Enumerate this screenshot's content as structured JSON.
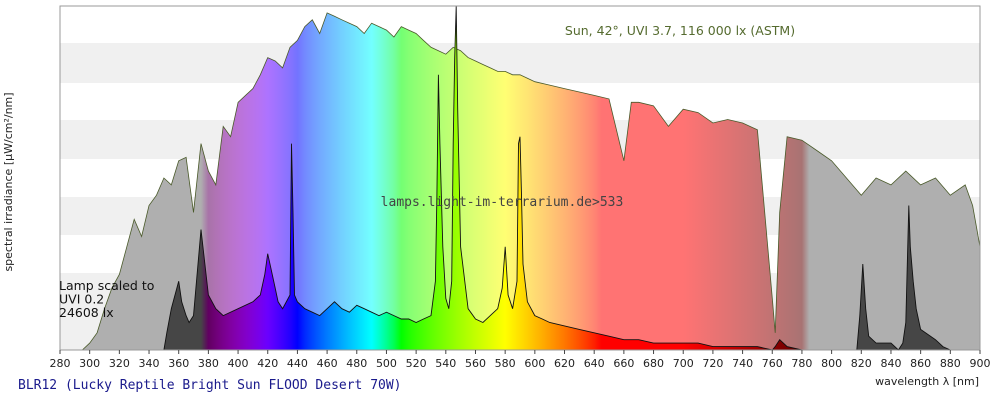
{
  "chart_data": {
    "type": "area",
    "title": "BLR12 (Lucky Reptile Bright Sun FLOOD Desert 70W)",
    "xlabel": "wavelength λ [nm]",
    "ylabel": "spectral irradiance [µW/cm²/nm]",
    "xlim": [
      280,
      900
    ],
    "xticks": [
      280,
      300,
      320,
      340,
      360,
      380,
      400,
      420,
      440,
      460,
      480,
      500,
      520,
      540,
      560,
      580,
      600,
      620,
      640,
      660,
      680,
      700,
      720,
      740,
      760,
      780,
      800,
      820,
      840,
      860,
      880,
      900
    ],
    "ylim": [
      0,
      100
    ],
    "y_tick_labels_shown": false,
    "grid": "horizontal bands",
    "watermark": "lamps.light-im-terrarium.de>533",
    "sun_label": "Sun, 42°, UVI 3.7, 116 000 lx (ASTM)",
    "lamp_label": [
      "Lamp scaled to",
      "UVI 0.2",
      "24608 lx"
    ],
    "series": [
      {
        "name": "Sun, 42°, UVI 3.7, 116 000 lx (ASTM)",
        "x": [
          280,
          295,
          300,
          305,
          310,
          315,
          320,
          325,
          330,
          335,
          340,
          345,
          350,
          355,
          360,
          365,
          370,
          375,
          380,
          385,
          390,
          395,
          400,
          405,
          410,
          415,
          420,
          425,
          430,
          435,
          440,
          445,
          450,
          455,
          460,
          465,
          470,
          475,
          480,
          485,
          490,
          495,
          500,
          505,
          510,
          515,
          520,
          525,
          530,
          535,
          540,
          545,
          550,
          555,
          560,
          565,
          570,
          575,
          580,
          585,
          590,
          595,
          600,
          610,
          620,
          630,
          640,
          650,
          660,
          665,
          670,
          680,
          690,
          700,
          710,
          720,
          730,
          740,
          750,
          760,
          762,
          765,
          770,
          780,
          790,
          800,
          820,
          830,
          840,
          850,
          860,
          870,
          880,
          890,
          895,
          900
        ],
        "values": [
          0,
          0,
          2,
          5,
          12,
          18,
          22,
          30,
          38,
          33,
          42,
          45,
          50,
          48,
          55,
          56,
          40,
          60,
          52,
          48,
          65,
          62,
          72,
          74,
          76,
          80,
          85,
          84,
          82,
          88,
          90,
          94,
          96,
          92,
          98,
          97,
          96,
          95,
          94,
          92,
          95,
          94,
          93,
          91,
          94,
          93,
          92,
          90,
          88,
          87,
          86,
          88,
          87,
          85,
          84,
          83,
          82,
          81,
          81,
          80,
          80,
          79,
          78,
          77,
          76,
          75,
          74,
          73,
          55,
          72,
          72,
          71,
          65,
          70,
          69,
          66,
          67,
          66,
          64,
          15,
          5,
          40,
          62,
          61,
          58,
          55,
          45,
          50,
          48,
          52,
          48,
          50,
          45,
          48,
          42,
          30
        ]
      },
      {
        "name": "BLR12 (Lucky Reptile Bright Sun FLOOD Desert 70W)",
        "x": [
          280,
          350,
          352,
          355,
          360,
          362,
          365,
          367,
          370,
          375,
          380,
          385,
          390,
          400,
          410,
          415,
          418,
          420,
          422,
          425,
          427,
          430,
          435,
          436,
          437,
          438,
          440,
          445,
          450,
          455,
          460,
          465,
          470,
          475,
          480,
          485,
          490,
          495,
          500,
          505,
          510,
          515,
          520,
          525,
          530,
          533,
          534,
          535,
          536,
          538,
          540,
          542,
          544,
          545,
          546,
          547,
          548,
          550,
          555,
          560,
          565,
          570,
          575,
          578,
          580,
          582,
          585,
          588,
          589,
          590,
          591,
          592,
          595,
          600,
          605,
          610,
          620,
          630,
          640,
          650,
          660,
          670,
          680,
          690,
          700,
          710,
          720,
          730,
          740,
          750,
          760,
          762,
          765,
          770,
          780,
          790,
          800,
          810,
          815,
          817,
          819,
          821,
          823,
          825,
          830,
          840,
          845,
          848,
          850,
          851,
          852,
          853,
          855,
          857,
          860,
          870,
          875,
          880
        ],
        "values": [
          0,
          0,
          5,
          12,
          20,
          14,
          10,
          8,
          10,
          35,
          16,
          12,
          10,
          12,
          14,
          16,
          22,
          28,
          24,
          18,
          14,
          12,
          16,
          60,
          40,
          16,
          14,
          12,
          11,
          10,
          12,
          14,
          12,
          11,
          13,
          12,
          11,
          10,
          11,
          10,
          9,
          9,
          8,
          9,
          10,
          20,
          45,
          80,
          60,
          30,
          15,
          12,
          20,
          60,
          85,
          100,
          70,
          30,
          12,
          9,
          8,
          10,
          12,
          18,
          30,
          16,
          12,
          20,
          60,
          62,
          45,
          25,
          14,
          10,
          9,
          8,
          7,
          6,
          5,
          4,
          3,
          3,
          2,
          2,
          2,
          2,
          1,
          1,
          1,
          1,
          0,
          1,
          3,
          1,
          0,
          0,
          0,
          0,
          0,
          0,
          10,
          25,
          12,
          4,
          2,
          2,
          0,
          2,
          8,
          25,
          42,
          30,
          20,
          12,
          6,
          3,
          1,
          0
        ]
      }
    ]
  }
}
